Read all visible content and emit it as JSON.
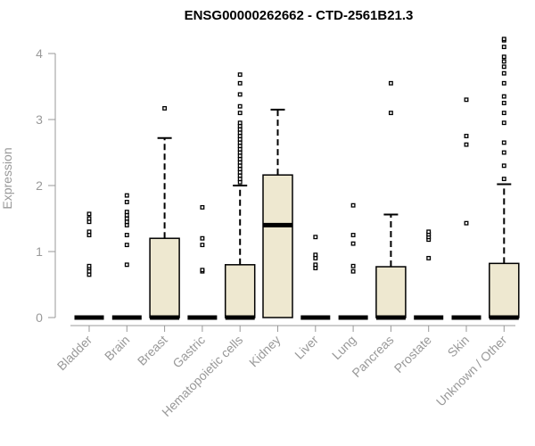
{
  "chart_data": {
    "type": "boxplot",
    "title": "ENSG00000262662 - CTD-2561B21.3",
    "ylabel": "Expression",
    "ylim": [
      0,
      4.2
    ],
    "yticks": [
      0,
      1,
      2,
      3,
      4
    ],
    "box_color": "#EEE8D0",
    "outline_color": "#000000",
    "axis_color": "#999999",
    "categories": [
      {
        "name": "Bladder",
        "q1": 0,
        "median": 0,
        "q3": 0,
        "lower": 0,
        "upper": 0,
        "outliers": [
          0.65,
          0.7,
          0.75,
          0.78,
          1.25,
          1.3,
          1.45,
          1.5,
          1.57
        ]
      },
      {
        "name": "Brain",
        "q1": 0,
        "median": 0,
        "q3": 0,
        "lower": 0,
        "upper": 0,
        "outliers": [
          0.8,
          1.1,
          1.25,
          1.4,
          1.45,
          1.5,
          1.55,
          1.6,
          1.75,
          1.85
        ]
      },
      {
        "name": "Breast",
        "q1": 0,
        "median": 0,
        "q3": 1.2,
        "lower": 0,
        "upper": 2.72,
        "outliers": [
          3.17
        ]
      },
      {
        "name": "Gastric",
        "q1": 0,
        "median": 0,
        "q3": 0,
        "lower": 0,
        "upper": 0,
        "outliers": [
          0.7,
          0.72,
          1.1,
          1.2,
          1.67
        ]
      },
      {
        "name": "Hematopoietic cells",
        "q1": 0,
        "median": 0,
        "q3": 0.8,
        "lower": 0,
        "upper": 2.0,
        "outliers": [
          2.05,
          2.1,
          2.15,
          2.2,
          2.25,
          2.3,
          2.35,
          2.4,
          2.45,
          2.5,
          2.55,
          2.6,
          2.65,
          2.7,
          2.75,
          2.8,
          2.85,
          2.9,
          2.95,
          3.1,
          3.2,
          3.38,
          3.55,
          3.68
        ]
      },
      {
        "name": "Kidney",
        "q1": 0,
        "median": 1.4,
        "q3": 2.16,
        "lower": 0,
        "upper": 3.15,
        "outliers": []
      },
      {
        "name": "Liver",
        "q1": 0,
        "median": 0,
        "q3": 0,
        "lower": 0,
        "upper": 0,
        "outliers": [
          0.75,
          0.8,
          0.9,
          0.95,
          1.22
        ]
      },
      {
        "name": "Lung",
        "q1": 0,
        "median": 0,
        "q3": 0,
        "lower": 0,
        "upper": 0,
        "outliers": [
          0.7,
          0.78,
          1.12,
          1.25,
          1.7
        ]
      },
      {
        "name": "Pancreas",
        "q1": 0,
        "median": 0,
        "q3": 0.77,
        "lower": 0,
        "upper": 1.56,
        "outliers": [
          3.1,
          3.55
        ]
      },
      {
        "name": "Prostate",
        "q1": 0,
        "median": 0,
        "q3": 0,
        "lower": 0,
        "upper": 0,
        "outliers": [
          0.9,
          1.18,
          1.22,
          1.26,
          1.3
        ]
      },
      {
        "name": "Skin",
        "q1": 0,
        "median": 0,
        "q3": 0,
        "lower": 0,
        "upper": 0,
        "outliers": [
          1.43,
          2.62,
          2.75,
          3.3
        ]
      },
      {
        "name": "Unknown / Other",
        "q1": 0,
        "median": 0,
        "q3": 0.82,
        "lower": 0,
        "upper": 2.02,
        "outliers": [
          2.1,
          2.3,
          2.5,
          2.65,
          2.95,
          3.1,
          3.25,
          3.35,
          3.55,
          3.7,
          3.8,
          3.88,
          3.95,
          4.1,
          4.2,
          4.22
        ]
      }
    ]
  }
}
